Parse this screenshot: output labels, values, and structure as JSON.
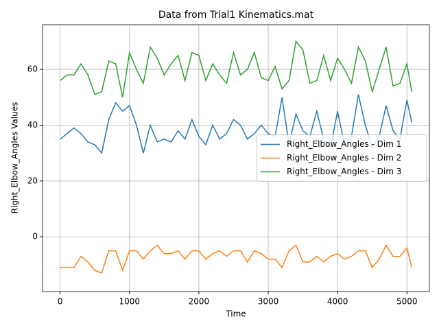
{
  "chart_data": {
    "type": "line",
    "title": "Data from Trial1 Kinematics.mat",
    "xlabel": "Time",
    "ylabel": "Right_Elbow_Angles Values",
    "x": [
      0,
      100,
      200,
      300,
      400,
      500,
      600,
      700,
      800,
      900,
      1000,
      1100,
      1200,
      1300,
      1400,
      1500,
      1600,
      1700,
      1800,
      1900,
      2000,
      2100,
      2200,
      2300,
      2400,
      2500,
      2600,
      2700,
      2800,
      2900,
      3000,
      3100,
      3200,
      3300,
      3400,
      3500,
      3600,
      3700,
      3800,
      3900,
      4000,
      4100,
      4200,
      4300,
      4400,
      4500,
      4600,
      4700,
      4800,
      4900,
      5000,
      5070
    ],
    "series": [
      {
        "name": "Right_Elbow_Angles - Dim 1",
        "color": "#1f77b4",
        "values": [
          35,
          37,
          39,
          37,
          34,
          33,
          30,
          42,
          48,
          45,
          47,
          40,
          30,
          40,
          34,
          35,
          34,
          38,
          35,
          42,
          36,
          33,
          40,
          35,
          37,
          42,
          40,
          35,
          37,
          40,
          37,
          36,
          50,
          33,
          44,
          38,
          36,
          45,
          35,
          32,
          45,
          33,
          36,
          51,
          40,
          32,
          36,
          47,
          38,
          35,
          49,
          41
        ]
      },
      {
        "name": "Right_Elbow_Angles - Dim 2",
        "color": "#ff7f0e",
        "values": [
          -11,
          -11,
          -11,
          -7,
          -9,
          -12,
          -13,
          -5,
          -5,
          -12,
          -5,
          -5,
          -8,
          -5,
          -3,
          -6,
          -6,
          -5,
          -8,
          -5,
          -5,
          -8,
          -6,
          -5,
          -7,
          -5,
          -5,
          -9,
          -5,
          -6,
          -8,
          -8,
          -11,
          -5,
          -3,
          -9,
          -9,
          -7,
          -9,
          -7,
          -6,
          -8,
          -7,
          -5,
          -5,
          -11,
          -8,
          -3,
          -7,
          -7,
          -4,
          -11
        ]
      },
      {
        "name": "Right_Elbow_Angles - Dim 3",
        "color": "#2ca02c",
        "values": [
          56,
          58,
          58,
          62,
          58,
          51,
          52,
          63,
          62,
          50,
          66,
          60,
          55,
          68,
          64,
          58,
          62,
          65,
          56,
          66,
          65,
          56,
          62,
          58,
          55,
          66,
          58,
          60,
          66,
          57,
          56,
          61,
          53,
          56,
          70,
          67,
          55,
          56,
          65,
          56,
          64,
          60,
          55,
          68,
          63,
          52,
          60,
          68,
          54,
          55,
          62,
          52
        ]
      }
    ],
    "xlim": [
      -254,
      5324
    ],
    "ylim": [
      -19.6,
      76
    ],
    "xticks": [
      0,
      1000,
      2000,
      3000,
      4000,
      5000
    ],
    "yticks": [
      0,
      20,
      40,
      60
    ],
    "grid": true,
    "legend": "center right"
  }
}
